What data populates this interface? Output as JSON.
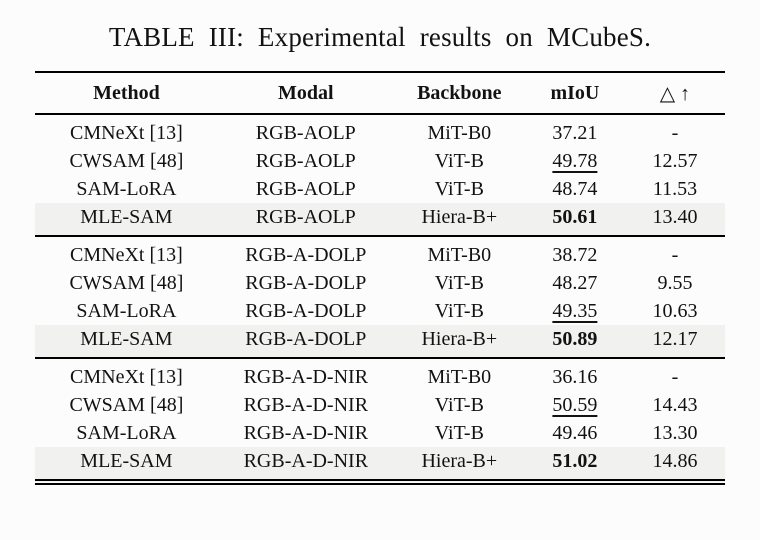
{
  "title": "TABLE III: Experimental results on MCubeS.",
  "table": {
    "headers": {
      "method": "Method",
      "modal": "Modal",
      "backbone": "Backbone",
      "miou": "mIoU",
      "delta": "△ ↑"
    },
    "groups": [
      {
        "rows": [
          {
            "method": "CMNeXt [13]",
            "modal": "RGB-AOLP",
            "backbone": "MiT-B0",
            "miou": "37.21",
            "delta": "-",
            "miou_style": "normal",
            "highlight": false
          },
          {
            "method": "CWSAM [48]",
            "modal": "RGB-AOLP",
            "backbone": "ViT-B",
            "miou": "49.78",
            "delta": "12.57",
            "miou_style": "underline",
            "highlight": false
          },
          {
            "method": "SAM-LoRA",
            "modal": "RGB-AOLP",
            "backbone": "ViT-B",
            "miou": "48.74",
            "delta": "11.53",
            "miou_style": "normal",
            "highlight": false
          },
          {
            "method": "MLE-SAM",
            "modal": "RGB-AOLP",
            "backbone": "Hiera-B+",
            "miou": "50.61",
            "delta": "13.40",
            "miou_style": "bold",
            "highlight": true
          }
        ]
      },
      {
        "rows": [
          {
            "method": "CMNeXt [13]",
            "modal": "RGB-A-DOLP",
            "backbone": "MiT-B0",
            "miou": "38.72",
            "delta": "-",
            "miou_style": "normal",
            "highlight": false
          },
          {
            "method": "CWSAM [48]",
            "modal": "RGB-A-DOLP",
            "backbone": "ViT-B",
            "miou": "48.27",
            "delta": "9.55",
            "miou_style": "normal",
            "highlight": false
          },
          {
            "method": "SAM-LoRA",
            "modal": "RGB-A-DOLP",
            "backbone": "ViT-B",
            "miou": "49.35",
            "delta": "10.63",
            "miou_style": "underline",
            "highlight": false
          },
          {
            "method": "MLE-SAM",
            "modal": "RGB-A-DOLP",
            "backbone": "Hiera-B+",
            "miou": "50.89",
            "delta": "12.17",
            "miou_style": "bold",
            "highlight": true
          }
        ]
      },
      {
        "rows": [
          {
            "method": "CMNeXt [13]",
            "modal": "RGB-A-D-NIR",
            "backbone": "MiT-B0",
            "miou": "36.16",
            "delta": "-",
            "miou_style": "normal",
            "highlight": false
          },
          {
            "method": "CWSAM [48]",
            "modal": "RGB-A-D-NIR",
            "backbone": "ViT-B",
            "miou": "50.59",
            "delta": "14.43",
            "miou_style": "underline",
            "highlight": false
          },
          {
            "method": "SAM-LoRA",
            "modal": "RGB-A-D-NIR",
            "backbone": "ViT-B",
            "miou": "49.46",
            "delta": "13.30",
            "miou_style": "normal",
            "highlight": false
          },
          {
            "method": "MLE-SAM",
            "modal": "RGB-A-D-NIR",
            "backbone": "Hiera-B+",
            "miou": "51.02",
            "delta": "14.86",
            "miou_style": "bold",
            "highlight": true
          }
        ]
      }
    ]
  },
  "styles": {
    "highlight_color": "#f1f1ef",
    "rule_color": "#000000",
    "text_color": "#121212",
    "background_color": "#fcfcfc"
  }
}
